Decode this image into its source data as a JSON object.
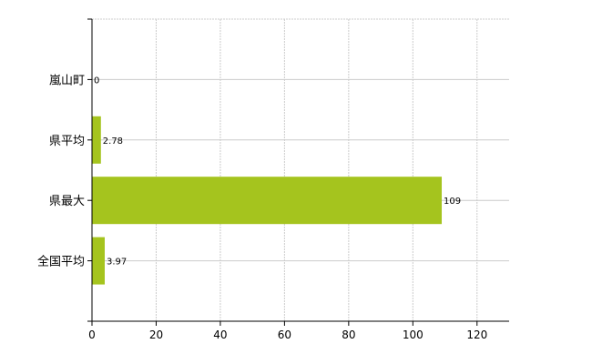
{
  "chart_data": {
    "type": "bar",
    "orientation": "horizontal",
    "categories": [
      "嵐山町",
      "県平均",
      "県最大",
      "全国平均"
    ],
    "values": [
      0,
      2.78,
      109,
      3.97
    ],
    "data_labels": [
      "0",
      "2.78",
      "109",
      "3.97"
    ],
    "xlim": [
      0,
      130
    ],
    "xticks": [
      0,
      20,
      40,
      60,
      80,
      100,
      120
    ],
    "title": "",
    "xlabel": "",
    "ylabel": "",
    "grid": true,
    "legend": "none",
    "bar_color": "#a5c41e",
    "grid_color": "#cccccc"
  }
}
